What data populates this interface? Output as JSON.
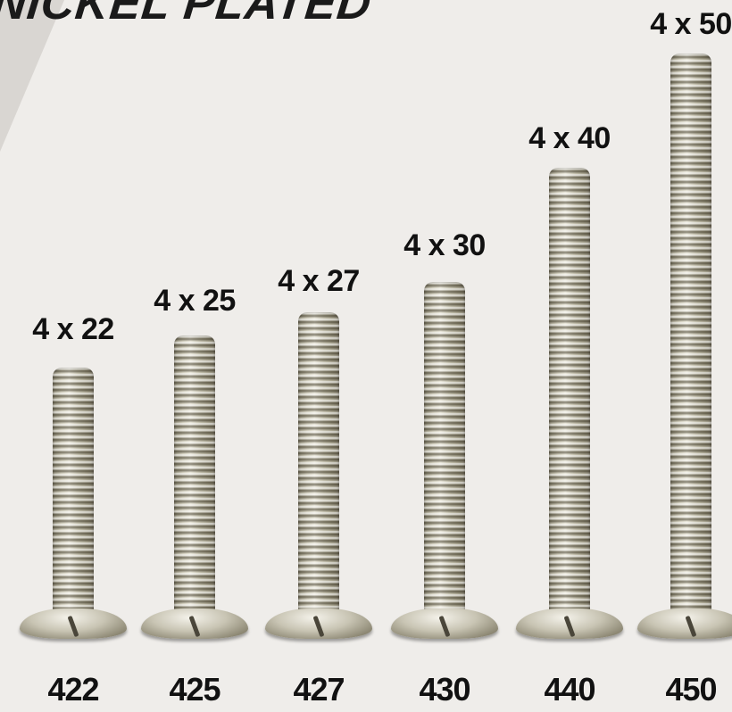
{
  "title": "NICKEL PLATED",
  "screws": [
    {
      "size": "4 x 22",
      "code": "422"
    },
    {
      "size": "4 x 25",
      "code": "425"
    },
    {
      "size": "4 x 27",
      "code": "427"
    },
    {
      "size": "4 x 30",
      "code": "430"
    },
    {
      "size": "4 x 40",
      "code": "440"
    },
    {
      "size": "4 x 50",
      "code": "450"
    }
  ]
}
